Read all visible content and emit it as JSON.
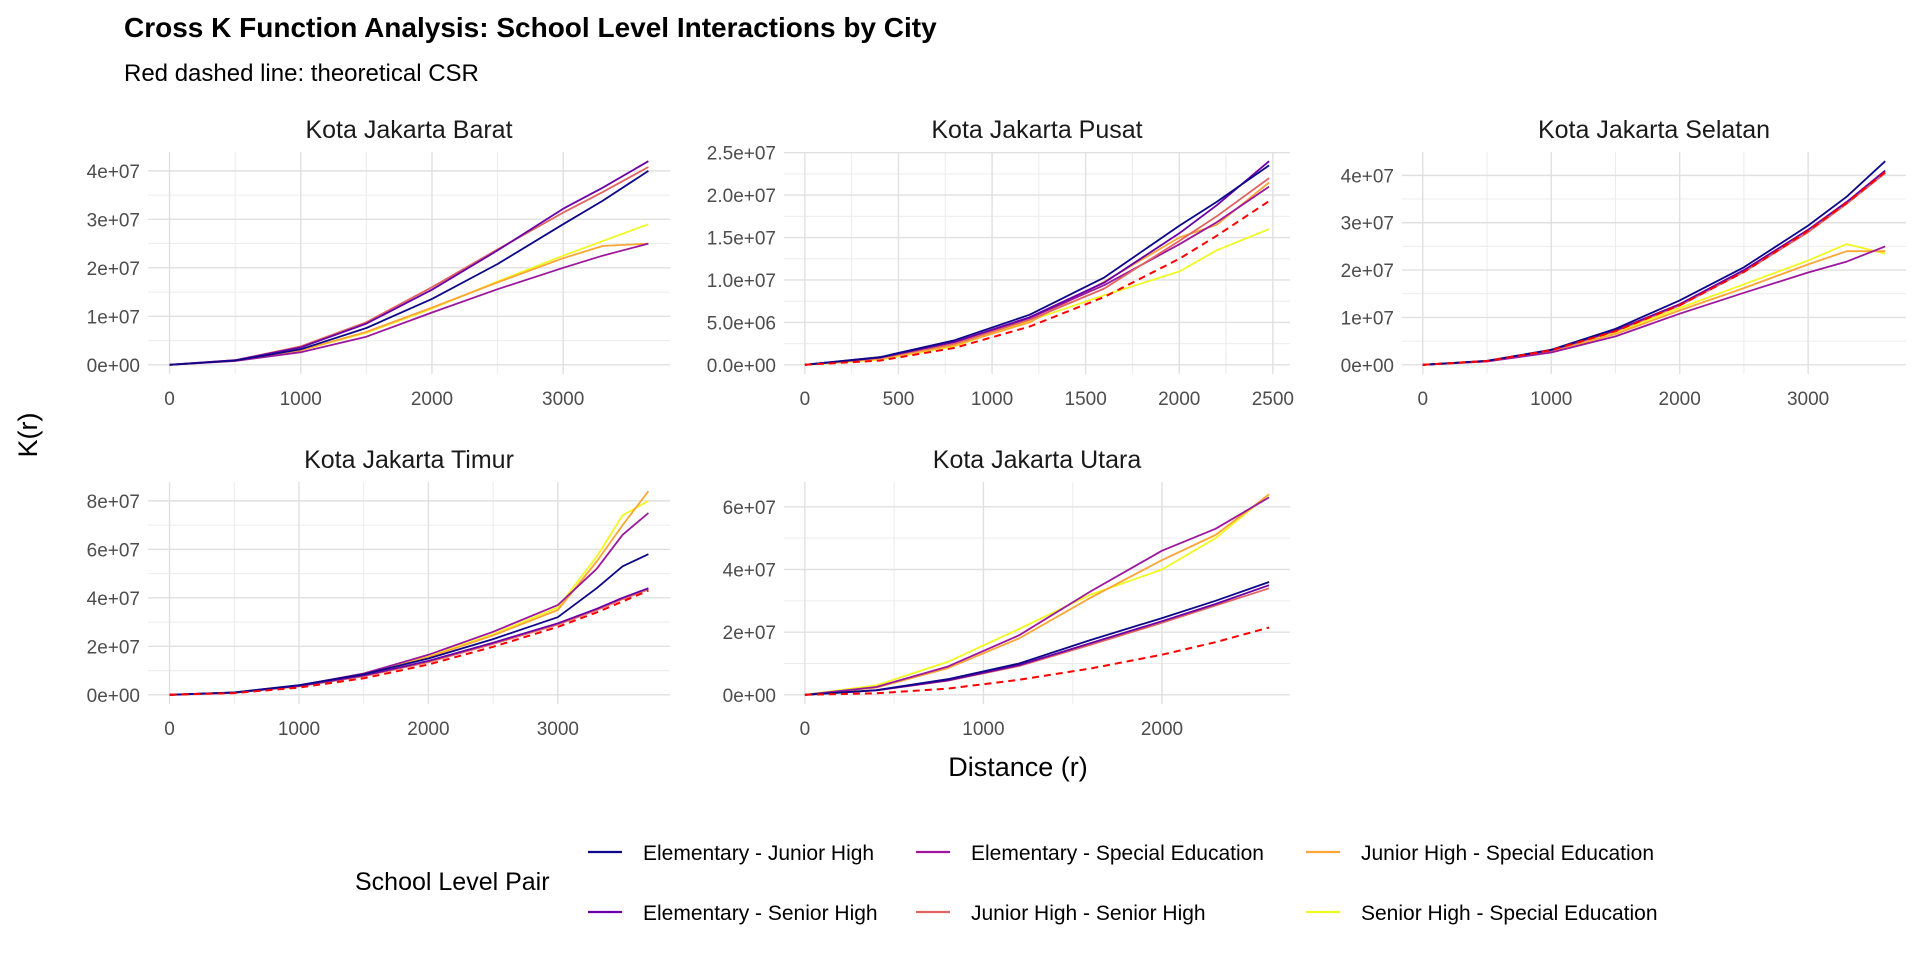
{
  "chart": {
    "title": "Cross K Function Analysis: School Level Interactions by City",
    "subtitle": "Red dashed line: theoretical CSR",
    "xlabel": "Distance (r)",
    "ylabel": "K(r)",
    "legend_title": "School Level Pair",
    "csr_color": "#ff0000"
  },
  "legend": [
    {
      "label": "Elementary - Junior High",
      "color": "#0d0887"
    },
    {
      "label": "Elementary - Special Education",
      "color": "#9c179e"
    },
    {
      "label": "Junior High - Special Education",
      "color": "#fca636"
    },
    {
      "label": "Elementary - Senior High",
      "color": "#6a00a8"
    },
    {
      "label": "Junior High - Senior High",
      "color": "#e16462"
    },
    {
      "label": "Senior High - Special Education",
      "color": "#f0f921"
    }
  ],
  "chart_data": [
    {
      "type": "line",
      "title": "Kota Jakarta Barat",
      "xlim": [
        0,
        3650
      ],
      "ylim": [
        0,
        42000000
      ],
      "xticks": [
        0,
        1000,
        2000,
        3000
      ],
      "yticks": [
        0,
        10000000,
        20000000,
        30000000,
        40000000
      ],
      "ytick_labels": [
        "0e+00",
        "1e+07",
        "2e+07",
        "3e+07",
        "4e+07"
      ],
      "x": [
        0,
        500,
        1000,
        1500,
        2000,
        2500,
        3000,
        3300,
        3650
      ],
      "series": [
        {
          "name": "Elementary - Junior High",
          "values": [
            0,
            900000,
            3200000,
            7600000,
            13600000,
            20800000,
            29000000,
            33800000,
            40000000
          ]
        },
        {
          "name": "Elementary - Senior High",
          "values": [
            0,
            950000,
            3600000,
            8500000,
            15500000,
            23600000,
            32200000,
            36500000,
            42000000
          ]
        },
        {
          "name": "Junior High - Senior High",
          "values": [
            0,
            950000,
            3800000,
            8800000,
            16000000,
            23800000,
            31400000,
            35600000,
            40800000
          ]
        },
        {
          "name": "Elementary - Special Education",
          "values": [
            0,
            800000,
            2600000,
            5800000,
            10800000,
            15600000,
            20000000,
            22500000,
            25000000
          ]
        },
        {
          "name": "Junior High - Special Education",
          "values": [
            0,
            850000,
            3000000,
            6800000,
            11800000,
            17000000,
            22000000,
            24500000,
            25000000
          ]
        },
        {
          "name": "Senior High - Special Education",
          "values": [
            0,
            850000,
            3000000,
            6600000,
            11600000,
            17200000,
            22500000,
            25500000,
            29000000
          ]
        }
      ]
    },
    {
      "type": "line",
      "title": "Kota Jakarta Pusat",
      "xlim": [
        0,
        2480
      ],
      "ylim": [
        0,
        24000000
      ],
      "xticks": [
        0,
        500,
        1000,
        1500,
        2000,
        2500
      ],
      "yticks": [
        0,
        5000000,
        10000000,
        15000000,
        20000000,
        25000000
      ],
      "ytick_labels": [
        "0.0e+00",
        "5.0e+06",
        "1.0e+07",
        "1.5e+07",
        "2.0e+07",
        "2.5e+07"
      ],
      "x": [
        0,
        400,
        800,
        1200,
        1600,
        2000,
        2200,
        2480
      ],
      "csr": [
        0,
        500000,
        2000000,
        4500000,
        8000000,
        12500000,
        15200000,
        19300000
      ],
      "series": [
        {
          "name": "Elementary - Junior High",
          "values": [
            0,
            900000,
            2900000,
            5900000,
            10300000,
            16400000,
            19200000,
            23500000
          ]
        },
        {
          "name": "Elementary - Senior High",
          "values": [
            0,
            850000,
            2700000,
            5600000,
            9700000,
            15500000,
            18800000,
            24000000
          ]
        },
        {
          "name": "Junior High - Senior High",
          "values": [
            0,
            800000,
            2500000,
            5300000,
            9000000,
            14600000,
            17500000,
            22000000
          ]
        },
        {
          "name": "Elementary - Special Education",
          "values": [
            0,
            900000,
            2600000,
            5500000,
            9400000,
            14200000,
            16800000,
            21000000
          ]
        },
        {
          "name": "Junior High - Special Education",
          "values": [
            0,
            700000,
            2300000,
            5000000,
            9800000,
            15000000,
            16500000,
            21500000
          ]
        },
        {
          "name": "Senior High - Special Education",
          "values": [
            0,
            600000,
            2200000,
            5200000,
            8200000,
            11000000,
            13500000,
            16000000
          ]
        }
      ]
    },
    {
      "type": "line",
      "title": "Kota Jakarta Selatan",
      "xlim": [
        0,
        3600
      ],
      "ylim": [
        0,
        43000000
      ],
      "xticks": [
        0,
        1000,
        2000,
        3000
      ],
      "yticks": [
        0,
        10000000,
        20000000,
        30000000,
        40000000
      ],
      "ytick_labels": [
        "0e+00",
        "1e+07",
        "2e+07",
        "3e+07",
        "4e+07"
      ],
      "x": [
        0,
        500,
        1000,
        1500,
        2000,
        2500,
        3000,
        3300,
        3600
      ],
      "csr": [
        0,
        800000,
        3100000,
        7100000,
        12600000,
        19600000,
        28300000,
        34200000,
        40700000
      ],
      "series": [
        {
          "name": "Elementary - Junior High",
          "values": [
            0,
            850000,
            3200000,
            7600000,
            13600000,
            20600000,
            29400000,
            35500000,
            43000000
          ]
        },
        {
          "name": "Elementary - Senior High",
          "values": [
            0,
            800000,
            3100000,
            7300000,
            12800000,
            20000000,
            28500000,
            34400000,
            41000000
          ]
        },
        {
          "name": "Junior High - Senior High",
          "values": [
            0,
            800000,
            3000000,
            7100000,
            12500000,
            19600000,
            28000000,
            34000000,
            40500000
          ]
        },
        {
          "name": "Elementary - Special Education",
          "values": [
            0,
            700000,
            2600000,
            6000000,
            10800000,
            15200000,
            19500000,
            21800000,
            25000000
          ]
        },
        {
          "name": "Junior High - Special Education",
          "values": [
            0,
            750000,
            2800000,
            6500000,
            11500000,
            16200000,
            21200000,
            24000000,
            24000000
          ]
        },
        {
          "name": "Senior High - Special Education",
          "values": [
            0,
            750000,
            2900000,
            6800000,
            12000000,
            17000000,
            22000000,
            25500000,
            23500000
          ]
        }
      ]
    },
    {
      "type": "line",
      "title": "Kota Jakarta Timur",
      "xlim": [
        0,
        3700
      ],
      "ylim": [
        0,
        84000000
      ],
      "xticks": [
        0,
        1000,
        2000,
        3000
      ],
      "yticks": [
        0,
        20000000,
        40000000,
        60000000,
        80000000
      ],
      "ytick_labels": [
        "0e+00",
        "2e+07",
        "4e+07",
        "6e+07",
        "8e+07"
      ],
      "x": [
        0,
        500,
        1000,
        1500,
        2000,
        2500,
        3000,
        3300,
        3500,
        3700
      ],
      "csr": [
        0,
        700000,
        3000000,
        6800000,
        12500000,
        19800000,
        28000000,
        34000000,
        38500000,
        43000000
      ],
      "series": [
        {
          "name": "Elementary - Junior High",
          "values": [
            0,
            1000000,
            4000000,
            8500000,
            15000000,
            23000000,
            32000000,
            44000000,
            53000000,
            58000000
          ]
        },
        {
          "name": "Elementary - Senior High",
          "values": [
            0,
            900000,
            3700000,
            8000000,
            14000000,
            21500000,
            29500000,
            35500000,
            40000000,
            44000000
          ]
        },
        {
          "name": "Junior High - Senior High",
          "values": [
            0,
            900000,
            3500000,
            7700000,
            13500000,
            21000000,
            29000000,
            35000000,
            39500000,
            43500000
          ]
        },
        {
          "name": "Elementary - Special Education",
          "values": [
            0,
            950000,
            3900000,
            8800000,
            16500000,
            26000000,
            37000000,
            52000000,
            66000000,
            75000000
          ]
        },
        {
          "name": "Junior High - Special Education",
          "values": [
            0,
            900000,
            3700000,
            8500000,
            15500000,
            24500000,
            35000000,
            55000000,
            70000000,
            84000000
          ]
        },
        {
          "name": "Senior High - Special Education",
          "values": [
            0,
            950000,
            3800000,
            8700000,
            15800000,
            25000000,
            36000000,
            57000000,
            74000000,
            80000000
          ]
        }
      ]
    },
    {
      "type": "line",
      "title": "Kota Jakarta Utara",
      "xlim": [
        0,
        2600
      ],
      "ylim": [
        0,
        65000000
      ],
      "xticks": [
        0,
        1000,
        2000
      ],
      "yticks": [
        0,
        20000000,
        40000000,
        60000000
      ],
      "ytick_labels": [
        "0e+00",
        "2e+07",
        "4e+07",
        "6e+07"
      ],
      "x": [
        0,
        400,
        800,
        1200,
        1600,
        2000,
        2300,
        2600
      ],
      "csr": [
        0,
        500000,
        2000000,
        4800000,
        8400000,
        12800000,
        16800000,
        21500000
      ],
      "series": [
        {
          "name": "Elementary - Junior High",
          "values": [
            0,
            1500000,
            5000000,
            10000000,
            17500000,
            24500000,
            30000000,
            36000000
          ]
        },
        {
          "name": "Elementary - Senior High",
          "values": [
            0,
            1400000,
            4600000,
            9500000,
            16500000,
            23500000,
            29000000,
            35000000
          ]
        },
        {
          "name": "Junior High - Senior High",
          "values": [
            0,
            1400000,
            4500000,
            9200000,
            16000000,
            23000000,
            28500000,
            34000000
          ]
        },
        {
          "name": "Elementary - Special Education",
          "values": [
            0,
            2500000,
            9000000,
            19000000,
            33000000,
            46000000,
            53000000,
            63000000
          ]
        },
        {
          "name": "Junior High - Special Education",
          "values": [
            0,
            2300000,
            8500000,
            18000000,
            31000000,
            43000000,
            51000000,
            64000000
          ]
        },
        {
          "name": "Senior High - Special Education",
          "values": [
            0,
            3000000,
            10500000,
            21000000,
            32000000,
            40000000,
            50000000,
            64000000
          ]
        }
      ]
    }
  ]
}
